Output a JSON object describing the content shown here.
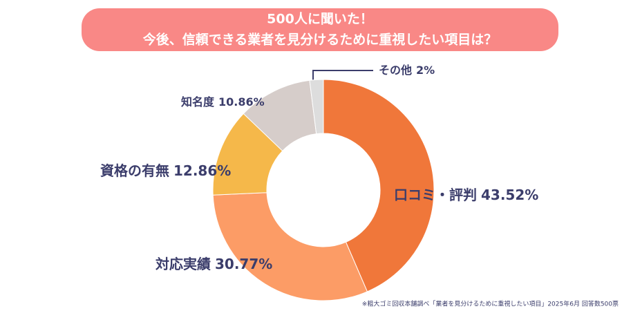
{
  "chart_data": {
    "type": "donut",
    "title": "500人に聞いた！",
    "subtitle": "今後、信頼できる業者を見分けるために重視したい項目は？",
    "categories": [
      "口コミ・評判",
      "対応実績",
      "資格の有無",
      "知名度",
      "その他"
    ],
    "values": [
      43.52,
      30.77,
      12.86,
      10.86,
      2
    ],
    "value_labels": [
      "43.52%",
      "30.77%",
      "12.86%",
      "10.86%",
      "2%"
    ],
    "colors": [
      "#f0773a",
      "#fc9c66",
      "#f5b84a",
      "#d6cdca",
      "#dddddd"
    ],
    "source": "※粗大ゴミ回収本舗調べ「業者を見分けるために重視したい項目」2025年6月 回答数500票"
  }
}
